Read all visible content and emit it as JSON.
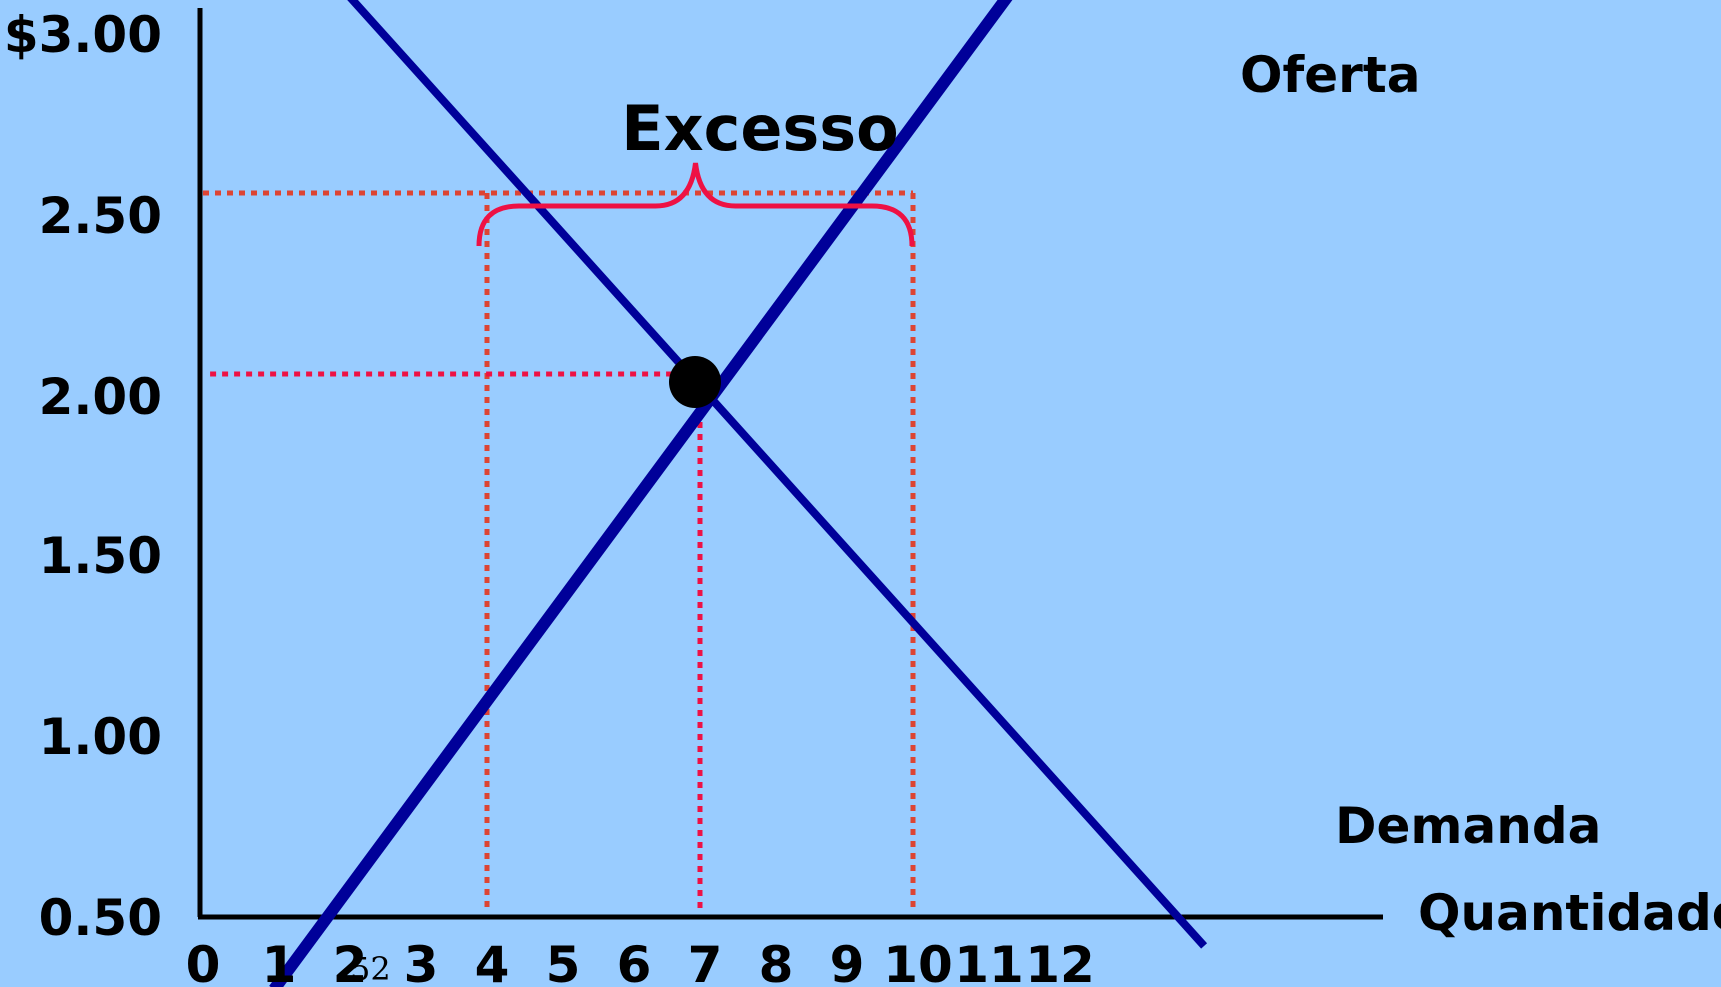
{
  "chart_data": {
    "type": "line",
    "x_ticks": [
      "0",
      "1",
      "2",
      "3",
      "4",
      "5",
      "6",
      "7",
      "8",
      "9",
      "10",
      "11",
      "12"
    ],
    "y_ticks": [
      "0.50",
      "1.00",
      "1.50",
      "2.00",
      "2.50",
      "$3.00"
    ],
    "xlabel": "Quantidade",
    "ylabel": "",
    "series": [
      {
        "name": "Oferta",
        "color": "#000099",
        "x": [
          1,
          12.3
        ],
        "y": [
          0.3,
          3.3
        ]
      },
      {
        "name": "Demanda",
        "color": "#000099",
        "x": [
          1.8,
          14.1
        ],
        "y": [
          3.1,
          0.42
        ]
      }
    ],
    "equilibrium": {
      "x": 7,
      "y": 2.0,
      "color": "#000000"
    },
    "guides": {
      "color_price": "#dd4433",
      "color_equilibrium": "#ee1144",
      "price_high": 2.5,
      "qty_demanded_at_high": 4,
      "qty_supplied_at_high": 10
    },
    "annotation": {
      "text": "Excesso",
      "color": "#ee1144"
    },
    "slide_number": "52"
  }
}
